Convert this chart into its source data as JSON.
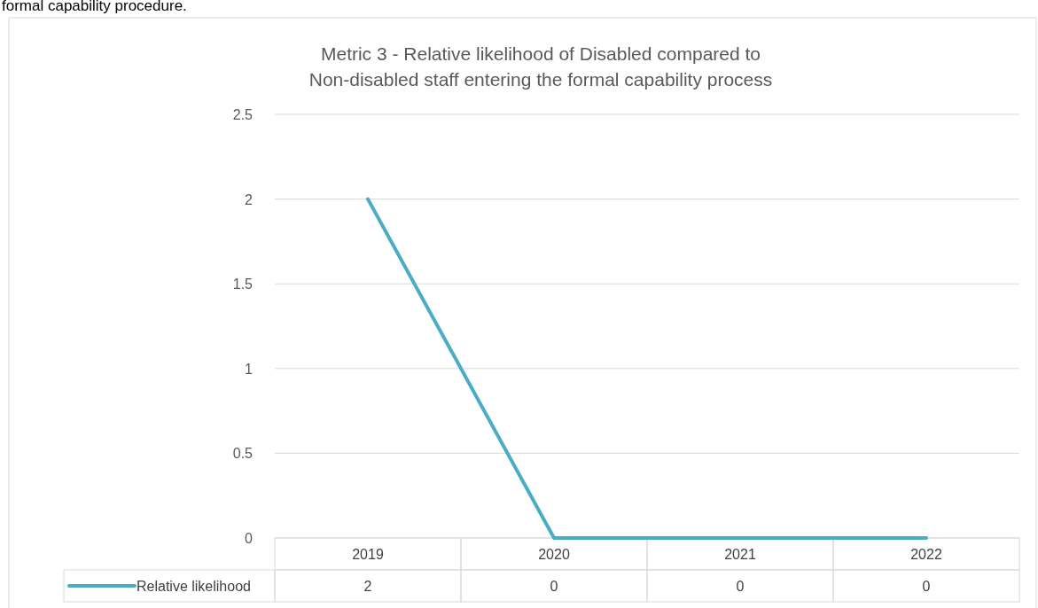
{
  "chart_data": {
    "type": "line",
    "title": "Metric 3 - Relative likelihood of Disabled compared to Non-disabled staff  entering the formal capability process",
    "annotations": [
      "formal capability procedure."
    ],
    "categories": [
      "2019",
      "2020",
      "2021",
      "2022"
    ],
    "series": [
      {
        "name": "Relative likelihood",
        "color": "#4bacc6",
        "values": [
          2,
          0,
          0,
          0
        ]
      }
    ],
    "ylim": [
      0,
      2.5
    ],
    "yticks": [
      0,
      0.5,
      1,
      1.5,
      2,
      2.5
    ],
    "grid": "y",
    "data_labels": true,
    "legend": "bottom",
    "marker": "none",
    "line_style": "solid"
  }
}
